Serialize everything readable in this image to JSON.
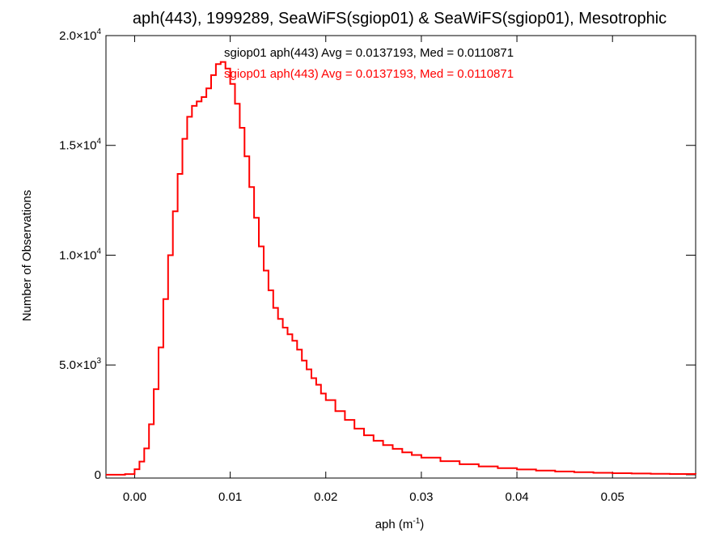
{
  "chart_data": {
    "type": "line",
    "title": "aph(443), 1999289, SeaWiFS(sgiop01) & SeaWiFS(sgiop01), Mesotrophic",
    "xlabel": "aph (m",
    "xlabel_sup": "-1",
    "xlabel_close": ")",
    "ylabel": "Number of Observations",
    "xlim": [
      -0.003,
      0.0587
    ],
    "ylim": [
      -150,
      20000
    ],
    "x_ticks": [
      {
        "value": 0.0,
        "label": "0.00"
      },
      {
        "value": 0.01,
        "label": "0.01"
      },
      {
        "value": 0.02,
        "label": "0.02"
      },
      {
        "value": 0.03,
        "label": "0.03"
      },
      {
        "value": 0.04,
        "label": "0.04"
      },
      {
        "value": 0.05,
        "label": "0.05"
      }
    ],
    "y_ticks": [
      {
        "value": 0,
        "mant": "0",
        "exp": ""
      },
      {
        "value": 5000,
        "mant": "5.0×10",
        "exp": "3"
      },
      {
        "value": 10000,
        "mant": "1.0×10",
        "exp": "4"
      },
      {
        "value": 15000,
        "mant": "1.5×10",
        "exp": "4"
      },
      {
        "value": 20000,
        "mant": "2.0×10",
        "exp": "4"
      }
    ],
    "annotations": [
      {
        "text": "sgiop01 aph(443) Avg = 0.0137193, Med = 0.0110871",
        "color": "#000000"
      },
      {
        "text": "sgiop01 aph(443) Avg = 0.0137193, Med = 0.0110871",
        "color": "#ff0000"
      }
    ],
    "series": [
      {
        "color": "#ff0000",
        "step": true,
        "x": [
          -0.003,
          -0.002,
          -0.001,
          0.0,
          0.0005,
          0.001,
          0.0015,
          0.002,
          0.0025,
          0.003,
          0.0035,
          0.004,
          0.0045,
          0.005,
          0.0055,
          0.006,
          0.0065,
          0.007,
          0.0075,
          0.008,
          0.0085,
          0.009,
          0.0095,
          0.01,
          0.0105,
          0.011,
          0.0115,
          0.012,
          0.0125,
          0.013,
          0.0135,
          0.014,
          0.0145,
          0.015,
          0.0155,
          0.016,
          0.0165,
          0.017,
          0.0175,
          0.018,
          0.0185,
          0.019,
          0.0195,
          0.02,
          0.021,
          0.022,
          0.023,
          0.024,
          0.025,
          0.026,
          0.027,
          0.028,
          0.029,
          0.03,
          0.032,
          0.034,
          0.036,
          0.038,
          0.04,
          0.042,
          0.044,
          0.046,
          0.048,
          0.05,
          0.052,
          0.054,
          0.056,
          0.0587
        ],
        "y": [
          0,
          0,
          30,
          250,
          600,
          1200,
          2300,
          3900,
          5800,
          8000,
          10000,
          12000,
          13700,
          15300,
          16300,
          16800,
          17000,
          17200,
          17600,
          18200,
          18700,
          18800,
          18500,
          17800,
          16900,
          15800,
          14500,
          13100,
          11700,
          10400,
          9300,
          8400,
          7600,
          7100,
          6700,
          6400,
          6100,
          5700,
          5200,
          4800,
          4400,
          4100,
          3700,
          3400,
          2900,
          2500,
          2100,
          1800,
          1550,
          1350,
          1180,
          1020,
          900,
          780,
          620,
          480,
          380,
          300,
          240,
          190,
          150,
          120,
          90,
          70,
          55,
          45,
          35,
          30
        ]
      }
    ]
  }
}
